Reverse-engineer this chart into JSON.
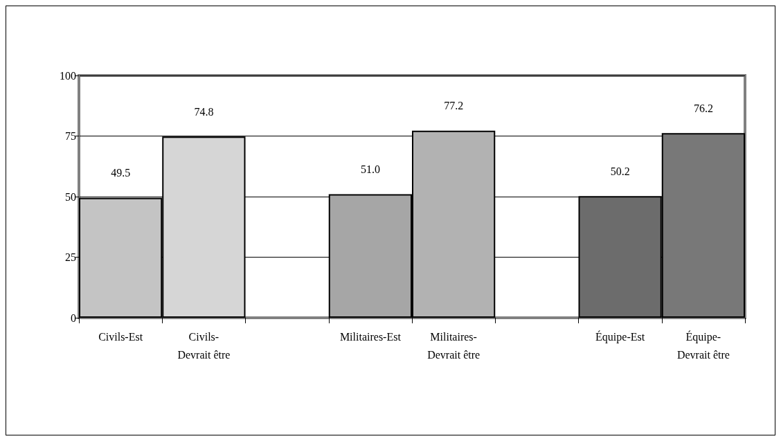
{
  "chart_data": {
    "type": "bar",
    "categories": [
      "Civils-Est",
      "Civils-\nDevrait être",
      null,
      "Militaires-Est",
      "Militaires-\nDevrait être",
      null,
      "Équipe-Est",
      "Équipe-\nDevrait être"
    ],
    "values": [
      49.5,
      74.8,
      null,
      51.0,
      77.2,
      null,
      50.2,
      76.2
    ],
    "value_labels": [
      "49.5",
      "74.8",
      null,
      "51.0",
      "77.2",
      null,
      "50.2",
      "76.2"
    ],
    "colors": [
      "#c4c4c4",
      "#d6d6d6",
      "#ffffff",
      "#a6a6a6",
      "#b2b2b2",
      "#ffffff",
      "#6c6c6c",
      "#787878"
    ],
    "ylim": [
      0,
      100
    ],
    "yticks": [
      0,
      25,
      50,
      75,
      100
    ],
    "grid": "y"
  }
}
